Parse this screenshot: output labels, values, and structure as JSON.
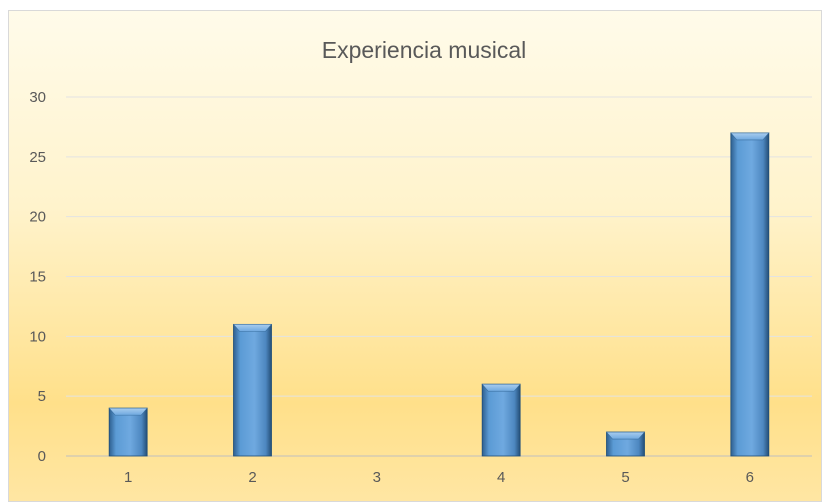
{
  "chart_data": {
    "type": "bar",
    "title": "Experiencia musical",
    "xlabel": "",
    "ylabel": "",
    "categories": [
      "1",
      "2",
      "3",
      "4",
      "5",
      "6"
    ],
    "values": [
      4,
      11,
      0,
      6,
      2,
      27
    ],
    "ylim": [
      0,
      30
    ],
    "yticks": [
      0,
      5,
      10,
      15,
      20,
      25,
      30
    ],
    "grid": true,
    "legend": "none",
    "bar_color": "#5b9bd5"
  }
}
